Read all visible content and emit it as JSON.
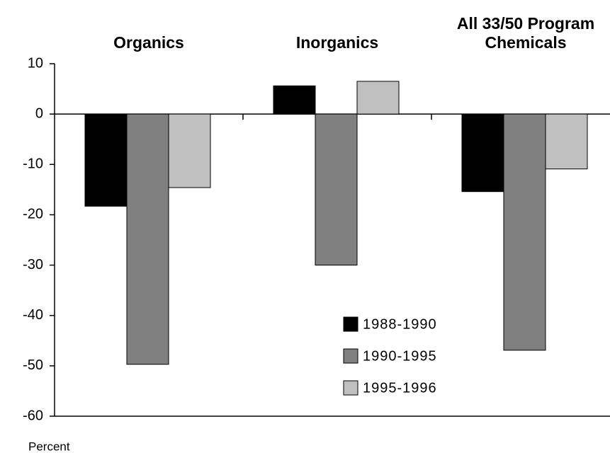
{
  "chart_data": {
    "type": "bar",
    "categories": [
      "Organics",
      "Inorganics",
      "All 33/50 Program Chemicals"
    ],
    "series": [
      {
        "name": "1988-1990",
        "color": "#000000",
        "values": [
          -18.3,
          5.6,
          -15.4
        ]
      },
      {
        "name": "1990-1995",
        "color": "#808080",
        "values": [
          -49.7,
          -30,
          -46.9
        ]
      },
      {
        "name": "1995-1996",
        "color": "#c0c0c0",
        "values": [
          -14.6,
          6.5,
          -10.9
        ]
      }
    ],
    "ylim": [
      -60,
      10
    ],
    "yticks": [
      -60,
      -50,
      -40,
      -30,
      -20,
      -10,
      0,
      10
    ],
    "y_axis_label": "Percent",
    "legend": "lower-center",
    "grid": false
  }
}
